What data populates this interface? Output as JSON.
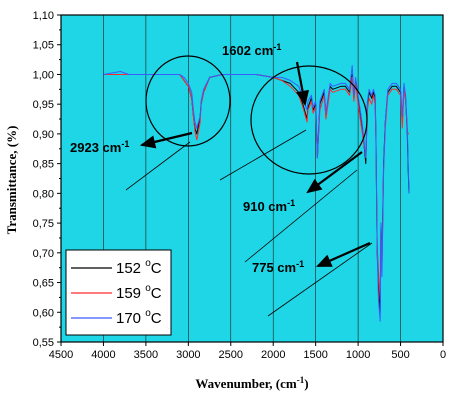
{
  "chart_data": {
    "type": "line",
    "xlabel": "Wavenumber, (cm",
    "xlabel_sup": "-1",
    "xlabel_end": ")",
    "ylabel": "Transmittance, (%)",
    "xlim": [
      4500,
      0
    ],
    "ylim": [
      0.55,
      1.1
    ],
    "x_ticks": [
      "4500",
      "4000",
      "3500",
      "3000",
      "2500",
      "2000",
      "1500",
      "1000",
      "500",
      "0"
    ],
    "y_ticks": [
      "0,55",
      "0,60",
      "0,65",
      "0,70",
      "0,75",
      "0,80",
      "0,85",
      "0,90",
      "0,95",
      "1,00",
      "1,05",
      "1,10"
    ],
    "grid": "vertical",
    "background_color": "#1fd6e6",
    "legend_position": "bottom-left",
    "series": [
      {
        "name": "152 °C",
        "label_parts": [
          "152 ",
          "o",
          "C"
        ],
        "color": "#000000",
        "x": [
          4000,
          3800,
          3700,
          3600,
          3500,
          3300,
          3100,
          3050,
          3000,
          2960,
          2940,
          2923,
          2900,
          2860,
          2850,
          2820,
          2750,
          2600,
          2400,
          2200,
          2000,
          1900,
          1800,
          1700,
          1650,
          1602,
          1590,
          1550,
          1530,
          1500,
          1480,
          1450,
          1400,
          1380,
          1330,
          1300,
          1200,
          1150,
          1100,
          1070,
          1050,
          1030,
          1000,
          980,
          950,
          910,
          890,
          870,
          840,
          820,
          800,
          790,
          775,
          760,
          740,
          730,
          720,
          700,
          680,
          650,
          600,
          550,
          500,
          480,
          460,
          440,
          420,
          410,
          400
        ],
        "values": [
          1.0,
          1.0,
          1.0,
          1.0,
          1.0,
          1.0,
          1.0,
          0.99,
          0.98,
          0.96,
          0.93,
          0.91,
          0.9,
          0.93,
          0.95,
          0.97,
          0.995,
          1.0,
          1.0,
          1.0,
          0.995,
          0.99,
          0.985,
          0.97,
          0.95,
          0.925,
          0.945,
          0.96,
          0.94,
          0.95,
          0.86,
          0.95,
          0.97,
          0.93,
          0.98,
          0.975,
          0.98,
          0.98,
          0.97,
          1.0,
          0.96,
          0.99,
          0.96,
          0.94,
          0.91,
          0.85,
          0.95,
          0.97,
          0.96,
          0.97,
          0.96,
          0.9,
          0.7,
          0.65,
          0.6,
          0.75,
          0.68,
          0.85,
          0.92,
          0.97,
          0.98,
          0.98,
          0.97,
          0.92,
          0.98,
          0.96,
          0.9,
          0.84,
          0.8
        ]
      },
      {
        "name": "159 °C",
        "label_parts": [
          "159 ",
          "o",
          "C"
        ],
        "color": "#ff2b2b",
        "x": [
          4000,
          3800,
          3700,
          3600,
          3500,
          3300,
          3100,
          3050,
          3000,
          2960,
          2940,
          2923,
          2900,
          2860,
          2850,
          2820,
          2750,
          2600,
          2400,
          2200,
          2000,
          1900,
          1800,
          1700,
          1650,
          1602,
          1590,
          1550,
          1530,
          1500,
          1480,
          1450,
          1400,
          1380,
          1330,
          1300,
          1200,
          1150,
          1100,
          1070,
          1050,
          1030,
          1000,
          980,
          950,
          910,
          890,
          870,
          840,
          820,
          800,
          790,
          775,
          760,
          740,
          730,
          720,
          700,
          680,
          650,
          600,
          550,
          500,
          480,
          460,
          440,
          420,
          410,
          400
        ],
        "values": [
          1.0,
          1.0,
          1.0,
          1.0,
          1.0,
          1.0,
          1.0,
          0.99,
          0.98,
          0.96,
          0.93,
          0.905,
          0.89,
          0.92,
          0.95,
          0.97,
          0.995,
          1.0,
          1.0,
          1.0,
          0.995,
          0.99,
          0.98,
          0.965,
          0.945,
          0.92,
          0.94,
          0.955,
          0.935,
          0.945,
          0.86,
          0.94,
          0.965,
          0.925,
          0.975,
          0.97,
          0.975,
          0.975,
          0.965,
          0.995,
          0.955,
          0.985,
          0.95,
          0.93,
          0.9,
          0.86,
          0.94,
          0.96,
          0.95,
          0.965,
          0.95,
          0.89,
          0.71,
          0.67,
          0.62,
          0.74,
          0.67,
          0.84,
          0.91,
          0.965,
          0.975,
          0.975,
          0.965,
          0.91,
          0.975,
          0.955,
          0.905,
          0.9,
          0.9
        ]
      },
      {
        "name": "170 °C",
        "label_parts": [
          "170 ",
          "o",
          "C"
        ],
        "color": "#3b5bff",
        "x": [
          4000,
          3800,
          3700,
          3600,
          3500,
          3300,
          3100,
          3050,
          3000,
          2960,
          2940,
          2923,
          2900,
          2860,
          2850,
          2820,
          2750,
          2600,
          2400,
          2200,
          2000,
          1900,
          1800,
          1700,
          1650,
          1602,
          1590,
          1550,
          1530,
          1500,
          1480,
          1450,
          1400,
          1380,
          1330,
          1300,
          1200,
          1150,
          1100,
          1070,
          1050,
          1030,
          1000,
          980,
          950,
          910,
          890,
          870,
          840,
          820,
          800,
          790,
          775,
          760,
          740,
          730,
          720,
          700,
          680,
          650,
          600,
          550,
          500,
          480,
          460,
          440,
          420,
          410,
          400
        ],
        "values": [
          1.0,
          1.005,
          1.0,
          1.0,
          1.0,
          1.0,
          1.0,
          0.995,
          0.985,
          0.97,
          0.94,
          0.92,
          0.91,
          0.93,
          0.955,
          0.975,
          0.995,
          1.0,
          1.0,
          1.0,
          0.995,
          0.995,
          0.99,
          0.98,
          0.96,
          0.94,
          0.955,
          0.965,
          0.945,
          0.955,
          0.86,
          0.955,
          0.975,
          0.935,
          0.985,
          0.98,
          0.985,
          0.985,
          0.975,
          1.015,
          0.965,
          0.995,
          0.965,
          0.945,
          0.915,
          0.86,
          0.955,
          0.975,
          0.965,
          0.975,
          0.965,
          0.905,
          0.7,
          0.62,
          0.585,
          0.75,
          0.66,
          0.84,
          0.92,
          0.975,
          0.985,
          0.985,
          0.975,
          0.93,
          0.985,
          0.965,
          0.91,
          0.85,
          0.8
        ]
      }
    ],
    "annotations": [
      {
        "label": "1602 cm",
        "sup": "-1"
      },
      {
        "label": "2923 cm",
        "sup": "-1"
      },
      {
        "label": "910 cm",
        "sup": "-1"
      },
      {
        "label": "775 cm",
        "sup": "-1"
      }
    ]
  }
}
